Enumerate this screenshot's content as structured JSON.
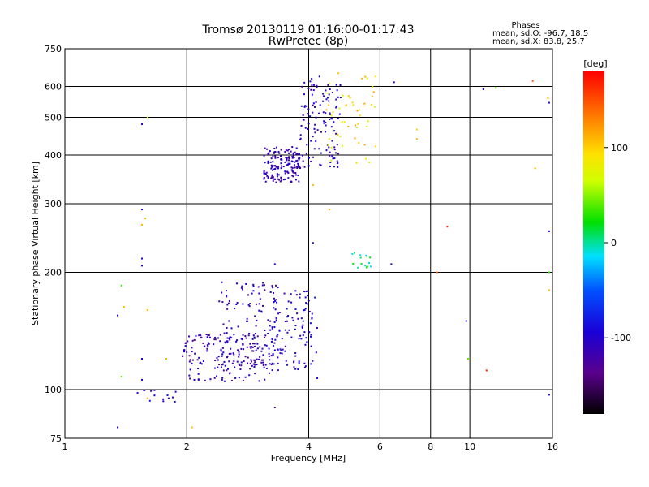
{
  "chart_data": {
    "type": "scatter",
    "title": "Tromsø 20130119 01:16:00-01:17:43",
    "subtitle": "RwPretec (8p)",
    "xlabel": "Frequency [MHz]",
    "ylabel": "Stationary phase Virtual Height [km]",
    "x_scale": "log",
    "y_scale": "log",
    "xlim": [
      1,
      16
    ],
    "ylim": [
      75,
      750
    ],
    "x_ticks": [
      1,
      2,
      4,
      6,
      8,
      10,
      16
    ],
    "y_ticks": [
      75,
      100,
      200,
      300,
      400,
      500,
      600,
      750
    ],
    "grid": true,
    "phase_info": {
      "heading": "Phases",
      "line_o": "mean, sd,O: -96.7, 18.5",
      "line_x": "mean, sd,X: 83.8, 25.7"
    },
    "colorbar": {
      "label": "[deg]",
      "ticks": [
        100,
        0,
        -100
      ],
      "range": [
        -180,
        180
      ]
    },
    "clusters": [
      {
        "x": [
          3.1,
          3.8
        ],
        "y": [
          340,
          420
        ],
        "n": 160,
        "phase": -110
      },
      {
        "x": [
          3.8,
          4.8
        ],
        "y": [
          370,
          640
        ],
        "n": 120,
        "phase": -105
      },
      {
        "x": [
          4.4,
          5.9
        ],
        "y": [
          380,
          650
        ],
        "n": 50,
        "phase": 90
      },
      {
        "x": [
          1.95,
          3.2
        ],
        "y": [
          105,
          140
        ],
        "n": 160,
        "phase": -112
      },
      {
        "x": [
          2.4,
          3.4
        ],
        "y": [
          115,
          190
        ],
        "n": 130,
        "phase": -108
      },
      {
        "x": [
          3.2,
          4.2
        ],
        "y": [
          112,
          180
        ],
        "n": 110,
        "phase": -100
      },
      {
        "x": [
          1.5,
          1.9
        ],
        "y": [
          93,
          100
        ],
        "n": 14,
        "phase": -100
      },
      {
        "x": [
          5.1,
          5.7
        ],
        "y": [
          205,
          225
        ],
        "n": 16,
        "phase": 10
      }
    ],
    "points": [
      {
        "x": 1.35,
        "y": 80,
        "phase": -105
      },
      {
        "x": 1.35,
        "y": 155,
        "phase": -100
      },
      {
        "x": 1.38,
        "y": 185,
        "phase": 30
      },
      {
        "x": 1.38,
        "y": 108,
        "phase": 40
      },
      {
        "x": 1.4,
        "y": 163,
        "phase": 110
      },
      {
        "x": 1.55,
        "y": 290,
        "phase": -100
      },
      {
        "x": 1.55,
        "y": 480,
        "phase": -110
      },
      {
        "x": 1.6,
        "y": 500,
        "phase": 70
      },
      {
        "x": 1.55,
        "y": 265,
        "phase": 110
      },
      {
        "x": 1.55,
        "y": 217,
        "phase": -100
      },
      {
        "x": 1.55,
        "y": 208,
        "phase": -105
      },
      {
        "x": 1.58,
        "y": 275,
        "phase": 110
      },
      {
        "x": 1.55,
        "y": 120,
        "phase": -100
      },
      {
        "x": 1.55,
        "y": 106,
        "phase": -100
      },
      {
        "x": 1.6,
        "y": 160,
        "phase": 110
      },
      {
        "x": 1.6,
        "y": 95,
        "phase": 110
      },
      {
        "x": 1.78,
        "y": 120,
        "phase": 110
      },
      {
        "x": 2.06,
        "y": 80,
        "phase": 110
      },
      {
        "x": 3.3,
        "y": 90,
        "phase": -130
      },
      {
        "x": 3.3,
        "y": 210,
        "phase": -100
      },
      {
        "x": 4.1,
        "y": 238,
        "phase": -100
      },
      {
        "x": 4.1,
        "y": 335,
        "phase": 110
      },
      {
        "x": 4.5,
        "y": 290,
        "phase": 110
      },
      {
        "x": 4.2,
        "y": 107,
        "phase": -100
      },
      {
        "x": 6.5,
        "y": 615,
        "phase": -100
      },
      {
        "x": 6.4,
        "y": 210,
        "phase": -100
      },
      {
        "x": 7.4,
        "y": 465,
        "phase": 100
      },
      {
        "x": 7.4,
        "y": 440,
        "phase": 110
      },
      {
        "x": 8.3,
        "y": 200,
        "phase": 140
      },
      {
        "x": 8.8,
        "y": 262,
        "phase": 160
      },
      {
        "x": 9.8,
        "y": 150,
        "phase": -100
      },
      {
        "x": 9.9,
        "y": 120,
        "phase": 40
      },
      {
        "x": 10.8,
        "y": 590,
        "phase": -100
      },
      {
        "x": 11.0,
        "y": 112,
        "phase": 170
      },
      {
        "x": 11.6,
        "y": 595,
        "phase": 40
      },
      {
        "x": 14.3,
        "y": 620,
        "phase": 150
      },
      {
        "x": 14.5,
        "y": 370,
        "phase": 110
      },
      {
        "x": 15.7,
        "y": 97,
        "phase": -110
      },
      {
        "x": 15.7,
        "y": 200,
        "phase": 30
      },
      {
        "x": 15.7,
        "y": 180,
        "phase": 110
      },
      {
        "x": 15.7,
        "y": 255,
        "phase": -100
      },
      {
        "x": 15.7,
        "y": 545,
        "phase": -105
      },
      {
        "x": 15.6,
        "y": 560,
        "phase": 110
      }
    ]
  }
}
